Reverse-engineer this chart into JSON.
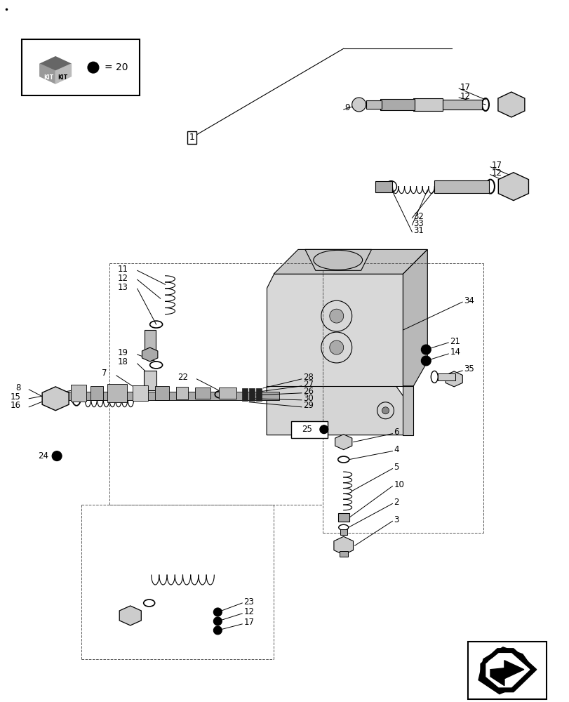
{
  "bg_color": "#ffffff",
  "line_color": "#000000",
  "fig_width": 8.12,
  "fig_height": 10.0
}
